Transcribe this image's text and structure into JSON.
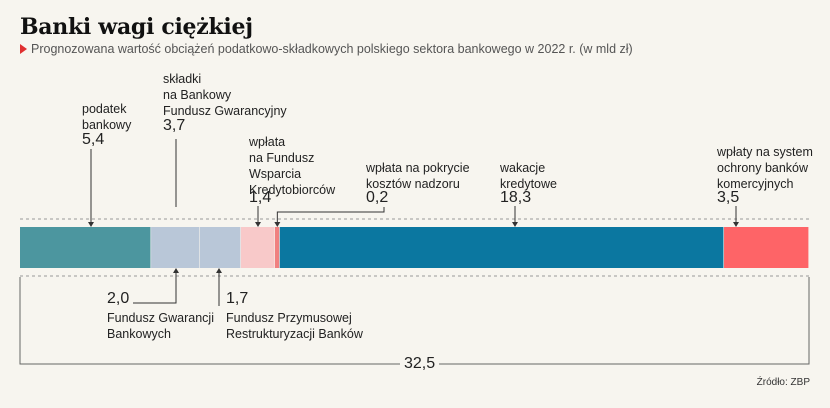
{
  "title": "Banki wagi ciężkiej",
  "subtitle": "Prognozowana wartość obciążeń podatkowo-składkowych polskiego sektora bankowego w 2022 r. (w mld zł)",
  "source": "Źródło: ZBP",
  "chart_data": {
    "type": "stacked-bar",
    "title": "Banki wagi ciężkiej",
    "unit": "mld zł",
    "total": 32.5,
    "total_label": "32,5",
    "segments": [
      {
        "id": "podatek",
        "label": "podatek bankowy",
        "value": 5.4,
        "value_label": "5,4",
        "color": "#4c969f"
      },
      {
        "id": "bfg1",
        "label": "Fundusz Gwarancji Bankowych",
        "value": 2.0,
        "value_label": "2,0",
        "color": "#b9c7d8"
      },
      {
        "id": "bfg2",
        "label": "Fundusz Przymusowej Restrukturyzacji Banków",
        "value": 1.7,
        "value_label": "1,7",
        "color": "#b9c7d8"
      },
      {
        "id": "fwk",
        "label": "wpłata na Fundusz Wsparcia Kredytobiorców",
        "value": 1.4,
        "value_label": "1,4",
        "color": "#f8c9c9"
      },
      {
        "id": "knf",
        "label": "wpłata na pokrycie kosztów nadzoru",
        "value": 0.2,
        "value_label": "0,2",
        "color": "#f08080"
      },
      {
        "id": "wakacje",
        "label": "wakacje kredytowe",
        "value": 18.3,
        "value_label": "18,3",
        "color": "#0b77a0"
      },
      {
        "id": "ochrona",
        "label": "wpłaty na system ochrony banków komercyjnych",
        "value": 3.5,
        "value_label": "3,5",
        "color": "#fe6467"
      }
    ],
    "group": {
      "label": "składki na Bankowy Fundusz Gwarancyjny",
      "value": 3.7,
      "value_label": "3,7"
    }
  },
  "labels": {
    "podatek": [
      "podatek",
      "bankowy"
    ],
    "bfg": [
      "składki",
      "na Bankowy",
      "Fundusz Gwarancyjny"
    ],
    "fwk": [
      "wpłata",
      "na Fundusz",
      "Wsparcia",
      "Kredytobiorców"
    ],
    "knf": [
      "wpłata na pokrycie",
      "kosztów nadzoru"
    ],
    "wakacje": [
      "wakacje",
      "kredytowe"
    ],
    "ochrona": [
      "wpłaty na system",
      "ochrony banków",
      "komercyjnych"
    ],
    "bfg1": [
      "Fundusz Gwarancji",
      "Bankowych"
    ],
    "bfg2": [
      "Fundusz Przymusowej",
      "Restrukturyzacji Banków"
    ]
  }
}
